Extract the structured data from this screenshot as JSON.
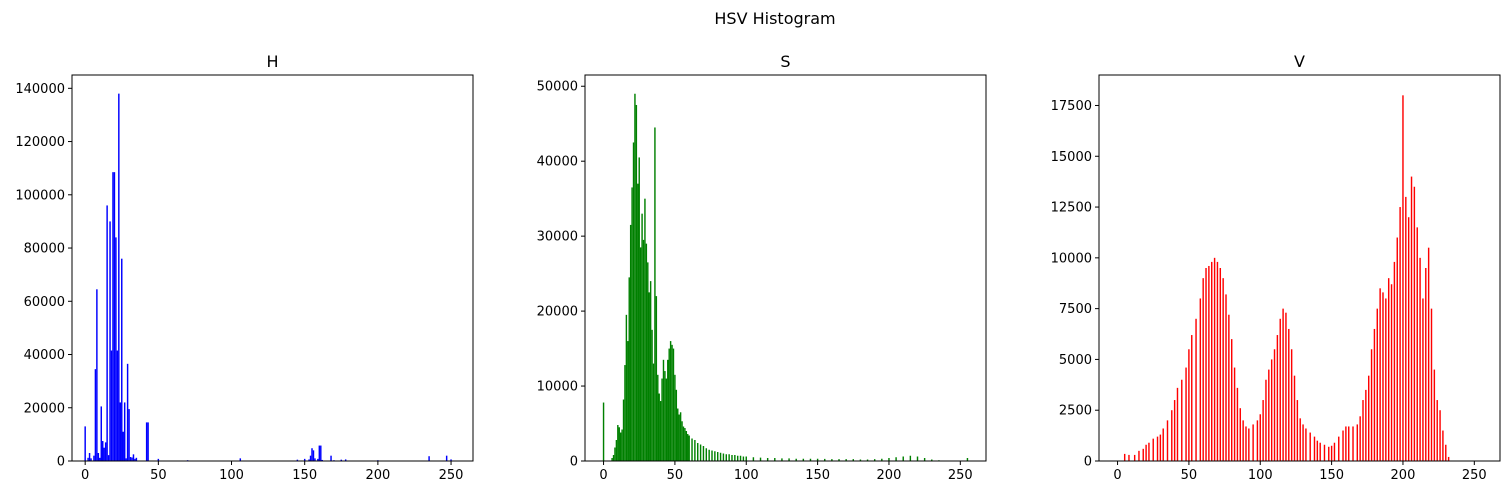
{
  "figure": {
    "title": "HSV Histogram"
  },
  "colors": {
    "H": "#0000ff",
    "S": "#008000",
    "V": "#ff0000"
  },
  "chart_data": [
    {
      "type": "bar",
      "title": "H",
      "color": "#0000ff",
      "xlim": [
        -9,
        265
      ],
      "ylim": [
        0,
        145000
      ],
      "xticks": [
        0,
        50,
        100,
        150,
        200,
        250
      ],
      "yticks": [
        0,
        20000,
        40000,
        60000,
        80000,
        100000,
        120000,
        140000
      ],
      "x": [
        0,
        2,
        3,
        4,
        6,
        7,
        8,
        9,
        10,
        11,
        12,
        13,
        14,
        15,
        16,
        17,
        18,
        19,
        20,
        21,
        22,
        23,
        24,
        25,
        26,
        27,
        28,
        29,
        30,
        31,
        32,
        33,
        34,
        35,
        42,
        43,
        50,
        70,
        106,
        145,
        150,
        153,
        154,
        155,
        156,
        157,
        159,
        160,
        161,
        162,
        168,
        170,
        175,
        178,
        200,
        235,
        247,
        250
      ],
      "values": [
        13000,
        1200,
        3000,
        1000,
        2000,
        34500,
        64500,
        3000,
        1200,
        20500,
        7500,
        5000,
        7000,
        96000,
        2200,
        90000,
        41500,
        108500,
        108500,
        84000,
        41500,
        138000,
        22000,
        76000,
        11000,
        22000,
        1000,
        36500,
        19500,
        1500,
        1300,
        2500,
        800,
        1200,
        14500,
        14500,
        800,
        300,
        1000,
        500,
        800,
        600,
        2000,
        4800,
        4000,
        1000,
        800,
        5800,
        5800,
        400,
        2000,
        300,
        500,
        600,
        300,
        1800,
        2000,
        600
      ]
    },
    {
      "type": "bar",
      "title": "S",
      "color": "#008000",
      "xlim": [
        -13,
        268
      ],
      "ylim": [
        0,
        51500
      ],
      "xticks": [
        0,
        50,
        100,
        150,
        200,
        250
      ],
      "yticks": [
        0,
        10000,
        20000,
        30000,
        40000,
        50000
      ],
      "x": [
        0,
        1,
        2,
        3,
        4,
        5,
        6,
        7,
        8,
        9,
        10,
        11,
        12,
        13,
        14,
        15,
        16,
        17,
        18,
        19,
        20,
        21,
        22,
        23,
        24,
        25,
        26,
        27,
        28,
        29,
        30,
        31,
        32,
        33,
        34,
        35,
        36,
        37,
        38,
        39,
        40,
        41,
        42,
        43,
        44,
        45,
        46,
        47,
        48,
        49,
        50,
        51,
        52,
        53,
        54,
        55,
        56,
        57,
        58,
        59,
        60,
        62,
        64,
        66,
        68,
        70,
        72,
        74,
        76,
        78,
        80,
        82,
        84,
        86,
        88,
        90,
        92,
        94,
        96,
        98,
        100,
        105,
        110,
        115,
        120,
        125,
        130,
        135,
        140,
        145,
        150,
        155,
        160,
        165,
        170,
        175,
        180,
        185,
        190,
        195,
        200,
        205,
        210,
        215,
        220,
        225,
        230,
        235,
        240,
        245,
        250,
        255
      ],
      "values": [
        7800,
        0,
        0,
        0,
        0,
        0,
        400,
        800,
        1800,
        2800,
        4800,
        4500,
        3800,
        4200,
        8200,
        12800,
        19500,
        16000,
        24500,
        31500,
        36500,
        42500,
        49000,
        47500,
        37000,
        40500,
        28500,
        33000,
        29500,
        35000,
        29000,
        26500,
        22500,
        24000,
        17500,
        13000,
        44500,
        22000,
        11500,
        9000,
        8000,
        11000,
        13500,
        12000,
        11000,
        13500,
        15000,
        16000,
        15500,
        15000,
        11500,
        9500,
        7000,
        6200,
        6500,
        5300,
        4600,
        4400,
        4000,
        3600,
        3400,
        3000,
        2800,
        2400,
        2200,
        2000,
        1700,
        1500,
        1400,
        1300,
        1200,
        1100,
        1000,
        900,
        900,
        800,
        800,
        700,
        700,
        600,
        600,
        500,
        450,
        400,
        400,
        350,
        350,
        300,
        300,
        300,
        300,
        280,
        250,
        250,
        250,
        250,
        200,
        200,
        250,
        300,
        400,
        500,
        600,
        700,
        600,
        400,
        200,
        100,
        50,
        50,
        50,
        400
      ]
    },
    {
      "type": "bar",
      "title": "V",
      "color": "#ff0000",
      "xlim": [
        -13,
        268
      ],
      "ylim": [
        0,
        19000
      ],
      "xticks": [
        0,
        50,
        100,
        150,
        200,
        250
      ],
      "yticks": [
        0,
        2500,
        5000,
        7500,
        10000,
        12500,
        15000,
        17500
      ],
      "x": [
        5,
        8,
        12,
        15,
        18,
        20,
        22,
        25,
        28,
        30,
        32,
        35,
        38,
        40,
        42,
        45,
        48,
        50,
        52,
        55,
        58,
        60,
        62,
        64,
        66,
        68,
        70,
        72,
        74,
        76,
        78,
        80,
        82,
        84,
        86,
        88,
        90,
        92,
        95,
        98,
        100,
        102,
        104,
        106,
        108,
        110,
        112,
        114,
        116,
        118,
        120,
        122,
        124,
        126,
        128,
        130,
        132,
        135,
        138,
        140,
        142,
        145,
        148,
        150,
        152,
        155,
        158,
        160,
        162,
        165,
        168,
        170,
        172,
        174,
        176,
        178,
        180,
        182,
        184,
        186,
        188,
        190,
        192,
        194,
        196,
        198,
        200,
        202,
        204,
        206,
        208,
        210,
        212,
        214,
        216,
        218,
        220,
        222,
        224,
        226,
        228,
        230,
        232
      ],
      "values": [
        350,
        300,
        300,
        500,
        600,
        800,
        900,
        1100,
        1200,
        1300,
        1600,
        2000,
        2500,
        3000,
        3600,
        4000,
        4600,
        5500,
        6200,
        7000,
        8000,
        9000,
        9500,
        9600,
        9800,
        10000,
        9800,
        9500,
        9000,
        8200,
        7200,
        6000,
        4600,
        3600,
        2600,
        2000,
        1700,
        1600,
        1800,
        2000,
        2300,
        3000,
        4000,
        4500,
        5000,
        5500,
        6200,
        7000,
        7500,
        7300,
        6500,
        5500,
        4200,
        3000,
        2100,
        1800,
        1600,
        1400,
        1200,
        1000,
        900,
        800,
        700,
        750,
        900,
        1200,
        1500,
        1700,
        1700,
        1700,
        1800,
        2200,
        3000,
        3500,
        4200,
        5500,
        6500,
        7500,
        8500,
        8300,
        8000,
        9000,
        8700,
        9800,
        11000,
        12500,
        18000,
        13000,
        12000,
        14000,
        13500,
        11500,
        10000,
        8000,
        9500,
        10500,
        7500,
        4500,
        3000,
        2500,
        1500,
        800,
        200
      ]
    }
  ]
}
